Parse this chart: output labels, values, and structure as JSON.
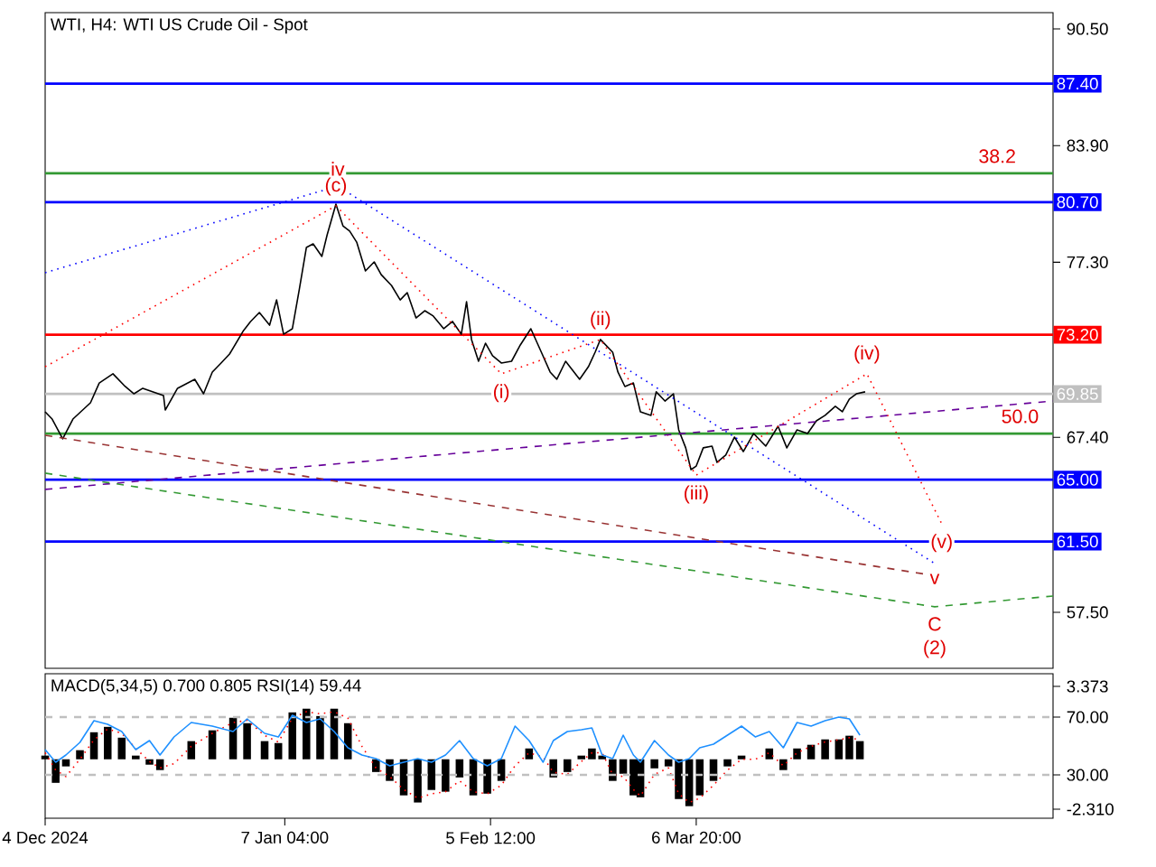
{
  "chart_data": [
    {
      "type": "line",
      "title": "WTI, H4: WTI US Crude Oil - Spot",
      "xlim": [
        "2024-12-04T00:00",
        "2025-04-26T17:00"
      ],
      "ylim": [
        54.33,
        91.42
      ],
      "tick_labels": "y",
      "marker": "none",
      "yticks": [
        {
          "value": 90.5,
          "label": "90.50"
        },
        {
          "value": 83.9,
          "label": "83.90"
        },
        {
          "value": 77.3,
          "label": "77.30"
        },
        {
          "value": 67.4,
          "label": "67.40"
        },
        {
          "value": 57.5,
          "label": "57.50"
        }
      ],
      "series": [
        {
          "color": "#000000",
          "line_style": "solid",
          "x": [
            "2024-12-04T00:00",
            "2024-12-05T00:00",
            "2024-12-06T12:00",
            "2024-12-07T23:00",
            "2024-12-10T11:00",
            "2024-12-11T17:00",
            "2024-12-13T16:00",
            "2024-12-15T10:00",
            "2024-12-16T16:00",
            "2024-12-17T22:00",
            "2024-12-20T21:00",
            "2024-12-21T03:00",
            "2024-12-22T21:00",
            "2024-12-25T08:00",
            "2024-12-26T14:00",
            "2024-12-27T20:00",
            "2024-12-29T02:00",
            "2024-12-30T07:00",
            "2025-01-01T07:00",
            "2025-01-02T07:00",
            "2025-01-03T13:00",
            "2025-01-05T00:00",
            "2025-01-06T00:00",
            "2025-01-07T00:00",
            "2025-01-08T06:00",
            "2025-01-09T06:00",
            "2025-01-10T06:00",
            "2025-01-11T05:00",
            "2025-01-12T11:00",
            "2025-01-13T05:00",
            "2025-01-14T11:00",
            "2025-01-15T11:00",
            "2025-01-16T10:00",
            "2025-01-17T10:00",
            "2025-01-18T16:00",
            "2025-01-19T22:00",
            "2025-01-20T22:00",
            "2025-01-22T09:00",
            "2025-01-23T15:00",
            "2025-01-24T15:00",
            "2025-01-25T21:00",
            "2025-01-27T03:00",
            "2025-01-28T08:00",
            "2025-01-29T20:00",
            "2025-01-31T02:00",
            "2025-02-01T08:00",
            "2025-02-02T02:00",
            "2025-02-02T19:00",
            "2025-02-03T19:00",
            "2025-02-04T19:00",
            "2025-02-05T19:00",
            "2025-02-07T01:00",
            "2025-02-08T12:00",
            "2025-02-09T18:00",
            "2025-02-11T06:00",
            "2025-02-12T18:00",
            "2025-02-14T00:00",
            "2025-02-14T23:00",
            "2025-02-16T05:00",
            "2025-02-18T05:00",
            "2025-02-19T11:00",
            "2025-02-20T10:00",
            "2025-02-21T04:00",
            "2025-02-22T22:00",
            "2025-02-23T16:00",
            "2025-02-24T16:00",
            "2025-02-25T21:00",
            "2025-02-26T21:00",
            "2025-02-28T09:00",
            "2025-03-01T03:00",
            "2025-03-02T09:00",
            "2025-03-03T14:00",
            "2025-03-04T08:00",
            "2025-03-05T08:00",
            "2025-03-06T02:00",
            "2025-03-06T20:00",
            "2025-03-07T20:00",
            "2025-03-09T02:00",
            "2025-03-09T19:00",
            "2025-03-11T01:00",
            "2025-03-12T07:00",
            "2025-03-13T13:00",
            "2025-03-15T00:00",
            "2025-03-16T18:00",
            "2025-03-18T12:00",
            "2025-03-19T18:00",
            "2025-03-21T05:00",
            "2025-03-22T17:00",
            "2025-03-23T23:00",
            "2025-03-25T05:00",
            "2025-03-26T16:00",
            "2025-03-27T16:00",
            "2025-03-28T16:00",
            "2025-03-29T16:00",
            "2025-03-30T22:00"
          ],
          "values": [
            68.84,
            68.43,
            67.31,
            68.43,
            69.35,
            70.47,
            70.99,
            70.27,
            69.86,
            70.17,
            69.76,
            68.94,
            70.17,
            70.68,
            69.86,
            71.09,
            71.6,
            72.11,
            73.44,
            73.95,
            74.46,
            73.74,
            75.17,
            73.23,
            73.54,
            75.79,
            78.14,
            78.34,
            77.63,
            78.85,
            80.59,
            79.36,
            79.06,
            78.44,
            76.81,
            77.32,
            76.6,
            75.99,
            75.17,
            75.58,
            74.15,
            74.56,
            74.26,
            73.54,
            73.95,
            73.23,
            75.07,
            72.93,
            71.7,
            72.72,
            72.01,
            71.6,
            71.7,
            72.62,
            73.54,
            72.21,
            71.09,
            70.68,
            71.7,
            70.68,
            71.39,
            72.21,
            72.93,
            72.21,
            71.09,
            70.27,
            70.47,
            68.84,
            68.64,
            69.97,
            69.45,
            69.86,
            67.82,
            66.8,
            65.57,
            65.77,
            66.8,
            66.9,
            65.98,
            66.39,
            67.41,
            66.59,
            67.61,
            66.9,
            68.02,
            66.8,
            67.82,
            67.61,
            68.33,
            68.64,
            69.15,
            68.84,
            69.56,
            69.86,
            69.97
          ]
        },
        {
          "color": "#0000ff",
          "line_style": "dotted",
          "x": [
            "2024-12-04T00:00",
            "2025-01-14T17:00",
            "2025-04-09T20:00"
          ],
          "values": [
            76.71,
            81.61,
            60.26
          ]
        },
        {
          "color": "#ff0000",
          "line_style": "dotted",
          "x": [
            "2024-12-04T00:00",
            "2025-01-14T11:00",
            "2025-02-07T01:00",
            "2025-02-21T04:00",
            "2025-03-06T20:00",
            "2025-03-31T04:00",
            "2025-04-10T20:00"
          ],
          "values": [
            71.39,
            80.49,
            70.99,
            72.93,
            65.26,
            70.99,
            62.51
          ]
        },
        {
          "color": "#660099",
          "line_style": "dashed",
          "x": [
            "2024-12-04T00:00",
            "2025-04-26T17:00"
          ],
          "values": [
            64.45,
            69.45
          ]
        },
        {
          "color": "#993333",
          "line_style": "dashed",
          "x": [
            "2024-12-04T00:00",
            "2025-04-08T14:00"
          ],
          "values": [
            67.51,
            59.65
          ]
        },
        {
          "color": "#339933",
          "line_style": "dashed",
          "x": [
            "2024-12-04T00:00",
            "2025-04-09T20:00",
            "2025-04-26T17:00"
          ],
          "values": [
            65.37,
            57.81,
            58.42
          ]
        }
      ],
      "ref_lines": [
        {
          "axis": "y",
          "value": 87.4,
          "label": "87.40",
          "color": "#0000ff"
        },
        {
          "axis": "y",
          "value": 82.33,
          "color": "#339933"
        },
        {
          "axis": "y",
          "value": 80.7,
          "label": "80.70",
          "color": "#0000ff"
        },
        {
          "axis": "y",
          "value": 73.2,
          "label": "73.20",
          "color": "#ff0000"
        },
        {
          "axis": "y",
          "value": 69.85,
          "label": "69.85",
          "color": "#c0c0c0"
        },
        {
          "axis": "y",
          "value": 67.61,
          "color": "#339933"
        },
        {
          "axis": "y",
          "value": 65.0,
          "label": "65.00",
          "color": "#0000ff"
        },
        {
          "axis": "y",
          "value": 61.5,
          "label": "61.50",
          "color": "#0000ff"
        }
      ],
      "annotations": [
        {
          "text": "38.2",
          "x": "2025-04-18T18:00",
          "y": 82.33
        },
        {
          "text": "50.0",
          "x": "2025-04-22T00:00",
          "y": 67.61
        },
        {
          "text": "iv",
          "x": "2025-01-14T17:00",
          "y": 81.61
        },
        {
          "text": "(c)",
          "x": "2025-01-14T11:00",
          "y": 80.49
        },
        {
          "text": "(i)",
          "x": "2025-02-07T01:00",
          "y": 70.99
        },
        {
          "text": "(ii)",
          "x": "2025-02-21T04:00",
          "y": 72.93
        },
        {
          "text": "(iii)",
          "x": "2025-03-06T20:00",
          "y": 65.26
        },
        {
          "text": "(iv)",
          "x": "2025-03-31T04:00",
          "y": 70.99
        },
        {
          "text": "(v)",
          "x": "2025-04-10T20:00",
          "y": 62.51
        },
        {
          "text": "v",
          "x": "2025-04-09T20:00",
          "y": 60.26
        },
        {
          "text": "C",
          "x": "2025-04-09T20:00",
          "y": 57.81
        },
        {
          "text": "(2)",
          "x": "2025-04-09T20:00",
          "y": 57.81
        }
      ]
    },
    {
      "type": "bar",
      "title": "MACD(5,34,5) 0.700 0.805 RSI(14) 59.44",
      "xlim": [
        "2024-12-04T00:00",
        "2025-04-26T17:00"
      ],
      "ylim": [
        -2.728,
        3.958
      ],
      "y2lim": [
        0,
        100
      ],
      "xticks": [
        {
          "value": "2024-12-04T00:00",
          "label": "4 Dec 2024"
        },
        {
          "value": "2025-01-07T04:00",
          "label": "7 Jan 04:00"
        },
        {
          "value": "2025-02-05T12:00",
          "label": "5 Feb 12:00"
        },
        {
          "value": "2025-03-06T20:00",
          "label": "6 Mar 20:00"
        }
      ],
      "yticks": [
        3.373,
        {
          "value": -2.31,
          "label": "-2.310"
        }
      ],
      "y2ticks": [
        {
          "value": 70,
          "label": "70.00"
        },
        {
          "value": 30,
          "label": "30.00"
        }
      ],
      "x": [
        "2024-12-04T00:00",
        "2024-12-05T12:00",
        "2024-12-06T23:00",
        "2024-12-08T23:00",
        "2024-12-10T23:00",
        "2024-12-12T22:00",
        "2024-12-14T22:00",
        "2024-12-16T22:00",
        "2024-12-18T21:00",
        "2024-12-20T09:00",
        "2024-12-22T09:00",
        "2024-12-24T20:00",
        "2024-12-27T20:00",
        "2024-12-30T19:00",
        "2025-01-01T19:00",
        "2025-01-04T07:00",
        "2025-01-06T06:00",
        "2025-01-08T06:00",
        "2025-01-10T06:00",
        "2025-01-12T05:00",
        "2025-01-14T05:00",
        "2025-01-16T04:00",
        "2025-01-18T04:00",
        "2025-01-20T04:00",
        "2025-01-22T03:00",
        "2025-01-24T03:00",
        "2025-01-26T03:00",
        "2025-01-28T02:00",
        "2025-01-30T02:00",
        "2025-02-01T02:00",
        "2025-02-03T01:00",
        "2025-02-05T01:00",
        "2025-02-07T01:00",
        "2025-02-09T00:00",
        "2025-02-11T00:00",
        "2025-02-13T00:00",
        "2025-02-14T11:00",
        "2025-02-16T11:00",
        "2025-02-18T11:00",
        "2025-02-19T23:00",
        "2025-02-21T10:00",
        "2025-02-22T22:00",
        "2025-02-24T10:00",
        "2025-02-25T21:00",
        "2025-02-26T21:00",
        "2025-02-28T21:00",
        "2025-03-02T21:00",
        "2025-03-04T08:00",
        "2025-03-05T20:00",
        "2025-03-07T08:00",
        "2025-03-09T07:00",
        "2025-03-11T07:00",
        "2025-03-13T07:00",
        "2025-03-15T06:00",
        "2025-03-17T06:00",
        "2025-03-19T06:00",
        "2025-03-21T05:00",
        "2025-03-23T05:00",
        "2025-03-25T05:00",
        "2025-03-27T04:00",
        "2025-03-28T16:00",
        "2025-03-30T04:00"
      ],
      "series": [
        {
          "type": "bar",
          "color": "#000000",
          "values": [
            0.17,
            -1.09,
            -0.33,
            0.42,
            1.25,
            1.5,
            1.0,
            0.17,
            -0.25,
            -0.5,
            0,
            0.84,
            1.34,
            1.92,
            1.67,
            0.84,
            0.75,
            2.17,
            2.34,
            2.0,
            2.34,
            1.67,
            0,
            -0.59,
            -1.0,
            -1.67,
            -2.0,
            -1.42,
            -1.5,
            -0.84,
            -1.67,
            -1.59,
            -1.0,
            0,
            0.5,
            0,
            -0.84,
            -0.59,
            0.17,
            0.5,
            0.17,
            -1.0,
            -0.67,
            -1.67,
            -1.76,
            -0.42,
            -0.33,
            -1.84,
            -2.17,
            -1.67,
            -1.0,
            -0.33,
            0.17,
            0,
            0.5,
            -0.5,
            0.5,
            0.67,
            0.92,
            0.92,
            1.09,
            0.84
          ]
        },
        {
          "type": "line",
          "color": "#ff0000",
          "line_style": "dotted",
          "values": [
            0.3,
            -0.5,
            -0.8,
            0.0,
            0.9,
            1.4,
            1.2,
            0.5,
            -0.1,
            -0.4,
            -0.2,
            0.6,
            1.2,
            1.7,
            1.8,
            1.1,
            0.8,
            1.9,
            2.2,
            2.1,
            2.2,
            1.9,
            0.6,
            -0.4,
            -0.8,
            -1.4,
            -1.8,
            -1.6,
            -1.5,
            -1.0,
            -1.5,
            -1.6,
            -1.2,
            -0.3,
            0.3,
            0.1,
            -0.6,
            -0.7,
            -0.1,
            0.3,
            0.3,
            -0.7,
            -0.8,
            -1.4,
            -1.7,
            -0.7,
            -0.4,
            -1.6,
            -2.0,
            -1.8,
            -1.2,
            -0.5,
            0.0,
            0.0,
            0.3,
            -0.3,
            0.3,
            0.6,
            0.8,
            0.9,
            1.0,
            0.9
          ]
        },
        {
          "type": "line",
          "color": "#1e90ff",
          "line_style": "solid",
          "axis": "y2",
          "values": [
            47.5,
            38.75,
            43.75,
            52.5,
            67.5,
            65,
            60,
            47.5,
            53.75,
            43.75,
            56.25,
            66.25,
            63.75,
            60,
            68.75,
            58.75,
            56.25,
            71.25,
            66.25,
            68.75,
            60,
            48.75,
            43.75,
            41.25,
            36.25,
            38.75,
            41.25,
            38.75,
            43.75,
            53.75,
            41.25,
            36.25,
            41.25,
            63.75,
            53.75,
            38.75,
            53.75,
            60,
            61.25,
            62.5,
            43.75,
            41.25,
            57.5,
            43.75,
            38.75,
            53.75,
            43.75,
            38.75,
            41.25,
            48.75,
            51.25,
            57.5,
            63.75,
            56.25,
            60,
            48.75,
            66.25,
            63.75,
            67.5,
            70,
            68.75,
            57.5
          ]
        }
      ],
      "ref_lines": [
        {
          "axis": "y2",
          "value": 70,
          "color": "#c0c0c0",
          "line_style": "dashed"
        },
        {
          "axis": "y2",
          "value": 30,
          "color": "#c0c0c0",
          "line_style": "dashed"
        }
      ]
    }
  ]
}
